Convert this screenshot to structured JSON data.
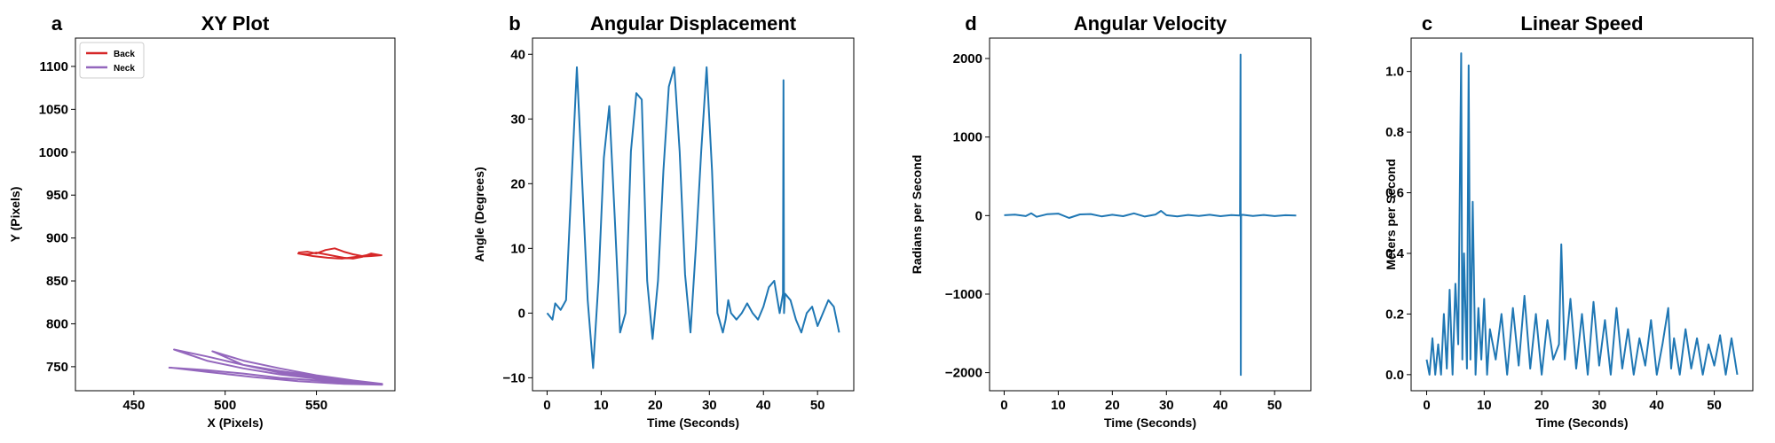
{
  "chart_data": [
    {
      "panel_label": "a",
      "type": "line",
      "title": "XY Plot",
      "xlabel": "X (Pixels)",
      "ylabel": "Y (Pixels)",
      "xlim": [
        418,
        593
      ],
      "ylim": [
        722,
        1133
      ],
      "xticks": [
        450,
        500,
        550
      ],
      "yticks": [
        750,
        800,
        850,
        900,
        950,
        1000,
        1050,
        1100
      ],
      "grid": false,
      "legend": "top-left",
      "series": [
        {
          "name": "Back",
          "color": "#d62728",
          "x": [
            540,
            545,
            550,
            555,
            560,
            565,
            570,
            575,
            580,
            585,
            580,
            575,
            570,
            565,
            560,
            555,
            550,
            545,
            540,
            548,
            556,
            564,
            572,
            580,
            586
          ],
          "y": [
            883,
            884,
            882,
            886,
            888,
            884,
            881,
            879,
            881,
            880,
            882,
            878,
            876,
            877,
            879,
            881,
            883,
            881,
            882,
            879,
            877,
            876,
            878,
            879,
            880
          ]
        },
        {
          "name": "Neck",
          "color": "#9467bd",
          "x": [
            469,
            490,
            510,
            530,
            550,
            570,
            586,
            570,
            550,
            530,
            510,
            490,
            472,
            490,
            510,
            530,
            550,
            570,
            586,
            570,
            550,
            530,
            510,
            493,
            510,
            530,
            550,
            570,
            586,
            565,
            540,
            515,
            490,
            470
          ],
          "y": [
            749,
            746,
            742,
            737,
            734,
            731,
            729,
            732,
            736,
            741,
            748,
            757,
            770,
            762,
            752,
            745,
            739,
            734,
            730,
            733,
            737,
            743,
            752,
            768,
            757,
            748,
            740,
            734,
            729,
            730,
            733,
            738,
            744,
            749
          ]
        }
      ]
    },
    {
      "panel_label": "b",
      "type": "line",
      "title": "Angular Displacement",
      "xlabel": "Time (Seconds)",
      "ylabel": "Angle (Degrees)",
      "xlim": [
        -2.7,
        56.7
      ],
      "ylim": [
        -12,
        42.5
      ],
      "xticks": [
        0,
        10,
        20,
        30,
        40,
        50
      ],
      "yticks": [
        -10,
        0,
        10,
        20,
        30,
        40
      ],
      "grid": false,
      "series": [
        {
          "color": "#1f77b4",
          "x": [
            0,
            1,
            1.5,
            2.5,
            3.5,
            4.5,
            5.5,
            6.5,
            7.5,
            8.5,
            9.5,
            10.5,
            11.5,
            12.5,
            13.5,
            14.5,
            15.5,
            16.5,
            17.5,
            18.5,
            19.5,
            20.5,
            21.5,
            22.5,
            23.5,
            24.5,
            25.5,
            26.5,
            27.5,
            28.5,
            29.5,
            30.5,
            31.5,
            32.5,
            33,
            33.5,
            34,
            35,
            36,
            37,
            38,
            39,
            40,
            41,
            42,
            43,
            43.6,
            43.7,
            43.8,
            44,
            45,
            46,
            47,
            48,
            49,
            50,
            51,
            52,
            53,
            54
          ],
          "y": [
            0,
            -1,
            1.5,
            0.5,
            2,
            20,
            38,
            20,
            2,
            -8.5,
            5,
            24,
            32,
            15,
            -3,
            0,
            25,
            34,
            33,
            5,
            -4,
            5,
            22,
            35,
            38,
            25,
            6,
            -3,
            10,
            25,
            38,
            22,
            0,
            -3,
            -1,
            2,
            0,
            -1,
            0,
            1.5,
            0,
            -1,
            1,
            4,
            5,
            0,
            3,
            36,
            0,
            3,
            2,
            -1,
            -3,
            0,
            1,
            -2,
            0,
            2,
            1,
            -3
          ]
        }
      ]
    },
    {
      "panel_label": "d",
      "type": "line",
      "title": "Angular Velocity",
      "xlabel": "Time (Seconds)",
      "ylabel": "Radians per Second",
      "xlim": [
        -2.7,
        56.7
      ],
      "ylim": [
        -2230,
        2260
      ],
      "xticks": [
        0,
        10,
        20,
        30,
        40,
        50
      ],
      "yticks": [
        -2000,
        -1000,
        0,
        1000,
        2000
      ],
      "grid": false,
      "series": [
        {
          "color": "#1f77b4",
          "x": [
            0,
            2,
            4,
            5,
            6,
            8,
            10,
            12,
            14,
            16,
            18,
            20,
            22,
            24,
            26,
            28,
            29,
            30,
            32,
            34,
            36,
            38,
            40,
            42,
            43.6,
            43.7,
            43.75,
            43.8,
            44,
            46,
            48,
            50,
            52,
            54
          ],
          "y": [
            5,
            12,
            -6,
            30,
            -15,
            18,
            25,
            -30,
            15,
            20,
            -10,
            10,
            -8,
            28,
            -12,
            14,
            60,
            5,
            -10,
            8,
            -5,
            10,
            -8,
            6,
            0,
            2050,
            -2030,
            0,
            10,
            -5,
            8,
            -6,
            5,
            0
          ]
        }
      ]
    },
    {
      "panel_label": "c",
      "type": "line",
      "title": "Linear Speed",
      "xlabel": "Time (Seconds)",
      "ylabel": "Meters per Second",
      "xlim": [
        -2.7,
        56.7
      ],
      "ylim": [
        -0.053,
        1.11
      ],
      "xticks": [
        0,
        10,
        20,
        30,
        40,
        50
      ],
      "yticks": [
        0.0,
        0.2,
        0.4,
        0.6,
        0.8,
        1.0
      ],
      "grid": false,
      "series": [
        {
          "color": "#1f77b4",
          "x": [
            0,
            0.5,
            1,
            1.5,
            2,
            2.5,
            3,
            3.5,
            4,
            4.5,
            5,
            5.5,
            6,
            6.2,
            6.5,
            7,
            7.3,
            7.6,
            8,
            8.5,
            9,
            9.5,
            10,
            10.5,
            11,
            12,
            13,
            14,
            15,
            16,
            17,
            18,
            19,
            20,
            21,
            22,
            23,
            23.4,
            24,
            25,
            26,
            27,
            28,
            29,
            30,
            31,
            32,
            33,
            34,
            35,
            36,
            37,
            38,
            39,
            40,
            41,
            42,
            42.5,
            43,
            44,
            45,
            46,
            47,
            48,
            49,
            50,
            51,
            52,
            53,
            54
          ],
          "y": [
            0.05,
            0,
            0.12,
            0,
            0.1,
            0,
            0.2,
            0.02,
            0.28,
            0,
            0.3,
            0.1,
            1.06,
            0.05,
            0.4,
            0.02,
            1.02,
            0.05,
            0.57,
            0,
            0.22,
            0.05,
            0.25,
            0,
            0.15,
            0.05,
            0.2,
            0,
            0.22,
            0.03,
            0.26,
            0.02,
            0.2,
            0,
            0.18,
            0.05,
            0.1,
            0.43,
            0.05,
            0.25,
            0.02,
            0.2,
            0,
            0.24,
            0.03,
            0.18,
            0,
            0.22,
            0.02,
            0.15,
            0,
            0.12,
            0.03,
            0.18,
            0,
            0.1,
            0.22,
            0.02,
            0.12,
            0,
            0.15,
            0.02,
            0.12,
            0,
            0.1,
            0.03,
            0.13,
            0,
            0.12,
            0
          ]
        }
      ]
    }
  ]
}
